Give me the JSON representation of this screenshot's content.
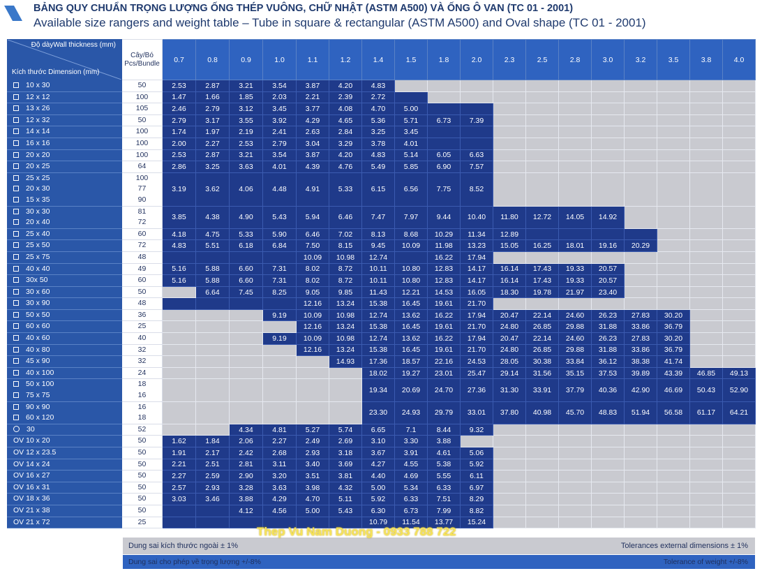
{
  "title_vi": "BẢNG QUY CHUẨN TRỌNG LƯỢNG ỐNG THÉP VUÔNG, CHỮ NHẬT (ASTM A500) VÀ ỐNG Ô VAN (TC 01 - 2001)",
  "title_en": "Available size rangers and weight table – Tube in square & rectangular (ASTM A500) and Oval shape (TC 01 - 2001)",
  "header": {
    "thickness_label": "Độ dàyWall thickness (mm)",
    "dimension_label": "Kích thước Dimension (mm)",
    "bundle_label": "Cây/Bó Pcs/Bundle",
    "thicknesses": [
      "0.7",
      "0.8",
      "0.9",
      "1.0",
      "1.1",
      "1.2",
      "1.4",
      "1.5",
      "1.8",
      "2.0",
      "2.3",
      "2.5",
      "2.8",
      "3.0",
      "3.2",
      "3.5",
      "3.8",
      "4.0"
    ]
  },
  "rows": [
    {
      "dims": [
        "10 x 30"
      ],
      "pcs": [
        "50"
      ],
      "shape": "square",
      "v": [
        "2.53",
        "2.87",
        "3.21",
        "3.54",
        "3.87",
        "4.20",
        "4.83",
        "",
        "",
        "",
        "",
        "",
        "",
        "",
        "",
        "",
        "",
        ""
      ],
      "avail": 7
    },
    {
      "dims": [
        "12 x 12"
      ],
      "pcs": [
        "100"
      ],
      "shape": "square",
      "v": [
        "1.47",
        "1.66",
        "1.85",
        "2.03",
        "2.21",
        "2.39",
        "2.72",
        "",
        "",
        "",
        "",
        "",
        "",
        "",
        "",
        "",
        "",
        ""
      ],
      "avail": 8
    },
    {
      "dims": [
        "13 x 26"
      ],
      "pcs": [
        "105"
      ],
      "shape": "square",
      "v": [
        "2.46",
        "2.79",
        "3.12",
        "3.45",
        "3.77",
        "4.08",
        "4.70",
        "5.00",
        "",
        "",
        "",
        "",
        "",
        "",
        "",
        "",
        "",
        ""
      ],
      "avail": 10
    },
    {
      "dims": [
        "12 x 32"
      ],
      "pcs": [
        "50"
      ],
      "shape": "square",
      "v": [
        "2.79",
        "3.17",
        "3.55",
        "3.92",
        "4.29",
        "4.65",
        "5.36",
        "5.71",
        "6.73",
        "7.39",
        "",
        "",
        "",
        "",
        "",
        "",
        "",
        ""
      ],
      "avail": 10
    },
    {
      "dims": [
        "14 x 14"
      ],
      "pcs": [
        "100"
      ],
      "shape": "square",
      "v": [
        "1.74",
        "1.97",
        "2.19",
        "2.41",
        "2.63",
        "2.84",
        "3.25",
        "3.45",
        "",
        "",
        "",
        "",
        "",
        "",
        "",
        "",
        "",
        ""
      ],
      "avail": 10
    },
    {
      "dims": [
        "16 x 16"
      ],
      "pcs": [
        "100"
      ],
      "shape": "square",
      "v": [
        "2.00",
        "2.27",
        "2.53",
        "2.79",
        "3.04",
        "3.29",
        "3.78",
        "4.01",
        "",
        "",
        "",
        "",
        "",
        "",
        "",
        "",
        "",
        ""
      ],
      "avail": 10
    },
    {
      "dims": [
        "20 x 20"
      ],
      "pcs": [
        "100"
      ],
      "shape": "square",
      "v": [
        "2.53",
        "2.87",
        "3.21",
        "3.54",
        "3.87",
        "4.20",
        "4.83",
        "5.14",
        "6.05",
        "6.63",
        "",
        "",
        "",
        "",
        "",
        "",
        "",
        ""
      ],
      "avail": 10
    },
    {
      "dims": [
        "20 x 25"
      ],
      "pcs": [
        "64"
      ],
      "shape": "square",
      "v": [
        "2.86",
        "3.25",
        "3.63",
        "4.01",
        "4.39",
        "4.76",
        "5.49",
        "5.85",
        "6.90",
        "7.57",
        "",
        "",
        "",
        "",
        "",
        "",
        "",
        ""
      ],
      "avail": 10
    },
    {
      "dims": [
        "25 x 25",
        "20 x 30",
        "15 x 35"
      ],
      "pcs": [
        "100",
        "77",
        "90"
      ],
      "shape": "square",
      "v": [
        "3.19",
        "3.62",
        "4.06",
        "4.48",
        "4.91",
        "5.33",
        "6.15",
        "6.56",
        "7.75",
        "8.52",
        "",
        "",
        "",
        "",
        "",
        "",
        "",
        ""
      ],
      "avail": 10
    },
    {
      "dims": [
        "30 x 30",
        "20 x 40"
      ],
      "pcs": [
        "81",
        "72"
      ],
      "shape": "square",
      "v": [
        "3.85",
        "4.38",
        "4.90",
        "5.43",
        "5.94",
        "6.46",
        "7.47",
        "7.97",
        "9.44",
        "10.40",
        "11.80",
        "12.72",
        "14.05",
        "14.92",
        "",
        "",
        "",
        ""
      ],
      "avail": 14
    },
    {
      "dims": [
        "25 x 40"
      ],
      "pcs": [
        "60"
      ],
      "shape": "square",
      "v": [
        "4.18",
        "4.75",
        "5.33",
        "5.90",
        "6.46",
        "7.02",
        "8.13",
        "8.68",
        "10.29",
        "11.34",
        "12.89",
        "",
        "",
        "",
        "",
        "",
        "",
        ""
      ],
      "avail": 15
    },
    {
      "dims": [
        "25 x 50"
      ],
      "pcs": [
        "72"
      ],
      "shape": "square",
      "v": [
        "4.83",
        "5.51",
        "6.18",
        "6.84",
        "7.50",
        "8.15",
        "9.45",
        "10.09",
        "11.98",
        "13.23",
        "15.05",
        "16.25",
        "18.01",
        "19.16",
        "20.29",
        "",
        "",
        ""
      ],
      "avail": 15
    },
    {
      "dims": [
        "25 x 75"
      ],
      "pcs": [
        "48"
      ],
      "shape": "square",
      "v": [
        "",
        "",
        "",
        "",
        "10.09",
        "10.98",
        "12.74",
        "",
        "16.22",
        "17.94",
        "",
        "",
        "",
        "",
        "",
        "",
        "",
        ""
      ],
      "avail": 10
    },
    {
      "dims": [
        "40 x 40"
      ],
      "pcs": [
        "49"
      ],
      "shape": "square",
      "v": [
        "5.16",
        "5.88",
        "6.60",
        "7.31",
        "8.02",
        "8.72",
        "10.11",
        "10.80",
        "12.83",
        "14.17",
        "16.14",
        "17.43",
        "19.33",
        "20.57",
        "",
        "",
        "",
        ""
      ],
      "avail": 14
    },
    {
      "dims": [
        "30x 50"
      ],
      "pcs": [
        "60"
      ],
      "shape": "square",
      "v": [
        "5.16",
        "5.88",
        "6.60",
        "7.31",
        "8.02",
        "8.72",
        "10.11",
        "10.80",
        "12.83",
        "14.17",
        "16.14",
        "17.43",
        "19.33",
        "20.57",
        "",
        "",
        "",
        ""
      ],
      "avail": 14
    },
    {
      "dims": [
        "30 x 60"
      ],
      "pcs": [
        "50"
      ],
      "shape": "square",
      "v": [
        "",
        "6.64",
        "7.45",
        "8.25",
        "9.05",
        "9.85",
        "11.43",
        "12.21",
        "14.53",
        "16.05",
        "18.30",
        "19.78",
        "21.97",
        "23.40",
        "",
        "",
        "",
        ""
      ],
      "avail": 14,
      "gray_start": [
        0
      ]
    },
    {
      "dims": [
        "30 x 90"
      ],
      "pcs": [
        "48"
      ],
      "shape": "square",
      "v": [
        "",
        "",
        "",
        "",
        "12.16",
        "13.24",
        "15.38",
        "16.45",
        "19.61",
        "21.70",
        "",
        "",
        "",
        "",
        "",
        "",
        "",
        ""
      ],
      "avail": 10
    },
    {
      "dims": [
        "50 x 50"
      ],
      "pcs": [
        "36"
      ],
      "shape": "square",
      "v": [
        "",
        "",
        "",
        "9.19",
        "10.09",
        "10.98",
        "12.74",
        "13.62",
        "16.22",
        "17.94",
        "20.47",
        "22.14",
        "24.60",
        "26.23",
        "27.83",
        "30.20",
        "",
        ""
      ],
      "avail": 16,
      "gray_start": [
        0,
        1,
        2
      ]
    },
    {
      "dims": [
        "60 x 60"
      ],
      "pcs": [
        "25"
      ],
      "shape": "square",
      "v": [
        "",
        "",
        "",
        "",
        "12.16",
        "13.24",
        "15.38",
        "16.45",
        "19.61",
        "21.70",
        "24.80",
        "26.85",
        "29.88",
        "31.88",
        "33.86",
        "36.79",
        "",
        ""
      ],
      "avail": 16,
      "gray_start": [
        0,
        1,
        2,
        3
      ]
    },
    {
      "dims": [
        "40 x 60"
      ],
      "pcs": [
        "40"
      ],
      "shape": "square",
      "v": [
        "",
        "",
        "",
        "9.19",
        "10.09",
        "10.98",
        "12.74",
        "13.62",
        "16.22",
        "17.94",
        "20.47",
        "22.14",
        "24.60",
        "26.23",
        "27.83",
        "30.20",
        "",
        ""
      ],
      "avail": 16,
      "gray_start": [
        0,
        1,
        2
      ]
    },
    {
      "dims": [
        "40 x 80"
      ],
      "pcs": [
        "32"
      ],
      "shape": "square",
      "v": [
        "",
        "",
        "",
        "",
        "12.16",
        "13.24",
        "15.38",
        "16.45",
        "19.61",
        "21.70",
        "24.80",
        "26.85",
        "29.88",
        "31.88",
        "33.86",
        "36.79",
        "",
        ""
      ],
      "avail": 16,
      "gray_start": [
        0,
        1,
        2,
        3
      ]
    },
    {
      "dims": [
        "45 x 90"
      ],
      "pcs": [
        "32"
      ],
      "shape": "square",
      "v": [
        "",
        "",
        "",
        "",
        "",
        "14.93",
        "17.36",
        "18.57",
        "22.16",
        "24.53",
        "28.05",
        "30.38",
        "33.84",
        "36.12",
        "38.38",
        "41.74",
        "",
        ""
      ],
      "avail": 16,
      "gray_start": [
        0,
        1,
        2,
        3,
        4
      ]
    },
    {
      "dims": [
        "40 x 100"
      ],
      "pcs": [
        "24"
      ],
      "shape": "square",
      "v": [
        "",
        "",
        "",
        "",
        "",
        "",
        "18.02",
        "19.27",
        "23.01",
        "25.47",
        "29.14",
        "31.56",
        "35.15",
        "37.53",
        "39.89",
        "43.39",
        "46.85",
        "49.13"
      ],
      "avail": 18,
      "gray_start": [
        0,
        1,
        2,
        3,
        4,
        5
      ]
    },
    {
      "dims": [
        "50 x 100",
        "75 x 75"
      ],
      "pcs": [
        "18",
        "16"
      ],
      "shape": "square",
      "v": [
        "",
        "",
        "",
        "",
        "",
        "",
        "19.34",
        "20.69",
        "24.70",
        "27.36",
        "31.30",
        "33.91",
        "37.79",
        "40.36",
        "42.90",
        "46.69",
        "50.43",
        "52.90"
      ],
      "avail": 18,
      "gray_start": [
        0,
        1,
        2,
        3,
        4,
        5
      ]
    },
    {
      "dims": [
        "90 x 90",
        "60 x 120"
      ],
      "pcs": [
        "16",
        "18"
      ],
      "shape": "square",
      "v": [
        "",
        "",
        "",
        "",
        "",
        "",
        "23.30",
        "24.93",
        "29.79",
        "33.01",
        "37.80",
        "40.98",
        "45.70",
        "48.83",
        "51.94",
        "56.58",
        "61.17",
        "64.21"
      ],
      "avail": 18,
      "gray_start": [
        0,
        1,
        2,
        3,
        4,
        5
      ]
    },
    {
      "dims": [
        "30"
      ],
      "pcs": [
        "52"
      ],
      "shape": "circle",
      "v": [
        "",
        "",
        "4.34",
        "4.81",
        "5.27",
        "5.74",
        "6.65",
        "7.1",
        "8.44",
        "9.32",
        "",
        "",
        "",
        "",
        "",
        "",
        "",
        ""
      ],
      "avail": 10,
      "gray_start": [
        0,
        1
      ]
    },
    {
      "dims": [
        "OV 10 x 20"
      ],
      "pcs": [
        "50"
      ],
      "shape": "none",
      "v": [
        "1.62",
        "1.84",
        "2.06",
        "2.27",
        "2.49",
        "2.69",
        "3.10",
        "3.30",
        "3.88",
        "",
        "",
        "",
        "",
        "",
        "",
        "",
        "",
        ""
      ],
      "avail": 9
    },
    {
      "dims": [
        "OV 12 x 23.5"
      ],
      "pcs": [
        "50"
      ],
      "shape": "none",
      "v": [
        "1.91",
        "2.17",
        "2.42",
        "2.68",
        "2.93",
        "3.18",
        "3.67",
        "3.91",
        "4.61",
        "5.06",
        "",
        "",
        "",
        "",
        "",
        "",
        "",
        ""
      ],
      "avail": 10
    },
    {
      "dims": [
        "OV 14 x 24"
      ],
      "pcs": [
        "50"
      ],
      "shape": "none",
      "v": [
        "2.21",
        "2.51",
        "2.81",
        "3.11",
        "3.40",
        "3.69",
        "4.27",
        "4.55",
        "5.38",
        "5.92",
        "",
        "",
        "",
        "",
        "",
        "",
        "",
        ""
      ],
      "avail": 10
    },
    {
      "dims": [
        "OV 16 x 27"
      ],
      "pcs": [
        "50"
      ],
      "shape": "none",
      "v": [
        "2.27",
        "2.59",
        "2.90",
        "3.20",
        "3.51",
        "3.81",
        "4.40",
        "4.69",
        "5.55",
        "6.11",
        "",
        "",
        "",
        "",
        "",
        "",
        "",
        ""
      ],
      "avail": 10
    },
    {
      "dims": [
        "OV 16 x 31"
      ],
      "pcs": [
        "50"
      ],
      "shape": "none",
      "v": [
        "2.57",
        "2.93",
        "3.28",
        "3.63",
        "3.98",
        "4.32",
        "5.00",
        "5.34",
        "6.33",
        "6.97",
        "",
        "",
        "",
        "",
        "",
        "",
        "",
        ""
      ],
      "avail": 10
    },
    {
      "dims": [
        "OV 18 x 36"
      ],
      "pcs": [
        "50"
      ],
      "shape": "none",
      "v": [
        "3.03",
        "3.46",
        "3.88",
        "4.29",
        "4.70",
        "5.11",
        "5.92",
        "6.33",
        "7.51",
        "8.29",
        "",
        "",
        "",
        "",
        "",
        "",
        "",
        ""
      ],
      "avail": 10
    },
    {
      "dims": [
        "OV 21 x 38"
      ],
      "pcs": [
        "50"
      ],
      "shape": "none",
      "v": [
        "",
        "",
        "4.12",
        "4.56",
        "5.00",
        "5.43",
        "6.30",
        "6.73",
        "7.99",
        "8.82",
        "",
        "",
        "",
        "",
        "",
        "",
        "",
        ""
      ],
      "avail": 10
    },
    {
      "dims": [
        "OV 21 x 72"
      ],
      "pcs": [
        "25"
      ],
      "shape": "none",
      "v": [
        "",
        "",
        "",
        "",
        "",
        "",
        "10.79",
        "11.54",
        "13.77",
        "15.24",
        "",
        "",
        "",
        "",
        "",
        "",
        "",
        ""
      ],
      "avail": 10
    }
  ],
  "footer": {
    "dim_tol_vi": "Dung sai kích thước ngoài ± 1%",
    "dim_tol_en": "Tolerances external dimensions ± 1%",
    "weight_tol_vi": "Dung sai cho phép về trọng lượng +/-8%",
    "weight_tol_en": "Tolerance of weight +/-8%"
  },
  "watermark": "Thep Vu Nam Duong - 0933 788 722",
  "colors": {
    "header_blue": "#2f63c0",
    "cell_blue": "#1f3a8a",
    "dim_blue": "#2a57a8",
    "gray": "#c9cad0",
    "watermark_yellow": "#f6e35a"
  }
}
